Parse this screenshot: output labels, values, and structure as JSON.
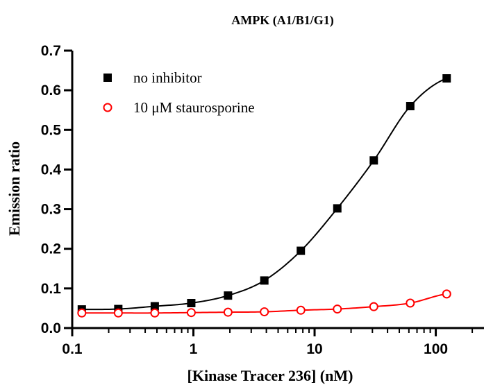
{
  "chart_data": {
    "type": "scatter",
    "title": "AMPK (A1/B1/G1)",
    "xlabel": "[Kinase Tracer 236] (nM)",
    "ylabel": "Emission ratio",
    "x_scale": "log",
    "xlim": [
      0.1,
      250
    ],
    "ylim": [
      0,
      0.7
    ],
    "x_ticks": [
      {
        "value": 0.1,
        "label": "0.1"
      },
      {
        "value": 1,
        "label": "1"
      },
      {
        "value": 10,
        "label": "10"
      },
      {
        "value": 100,
        "label": "100"
      }
    ],
    "y_ticks": [
      {
        "value": 0.0,
        "label": "0.0"
      },
      {
        "value": 0.1,
        "label": "0.1"
      },
      {
        "value": 0.2,
        "label": "0.2"
      },
      {
        "value": 0.3,
        "label": "0.3"
      },
      {
        "value": 0.4,
        "label": "0.4"
      },
      {
        "value": 0.5,
        "label": "0.5"
      },
      {
        "value": 0.6,
        "label": "0.6"
      },
      {
        "value": 0.7,
        "label": "0.7"
      }
    ],
    "grid": false,
    "legend_position": "top-left",
    "series": [
      {
        "name": "no inhibitor",
        "marker": "filled-square",
        "color": "#000000",
        "fit_curve": true,
        "x": [
          0.12,
          0.24,
          0.48,
          0.96,
          1.93,
          3.85,
          7.7,
          15.4,
          30.8,
          61.6,
          123
        ],
        "y": [
          0.047,
          0.048,
          0.055,
          0.063,
          0.082,
          0.12,
          0.195,
          0.302,
          0.423,
          0.56,
          0.63
        ]
      },
      {
        "name": "10 μM staurosporine",
        "marker": "open-circle",
        "color": "#ff0000",
        "fit_curve": true,
        "x": [
          0.12,
          0.24,
          0.48,
          0.96,
          1.93,
          3.85,
          7.7,
          15.4,
          30.8,
          61.6,
          123
        ],
        "y": [
          0.038,
          0.038,
          0.038,
          0.039,
          0.04,
          0.041,
          0.045,
          0.048,
          0.054,
          0.063,
          0.086
        ]
      }
    ]
  }
}
